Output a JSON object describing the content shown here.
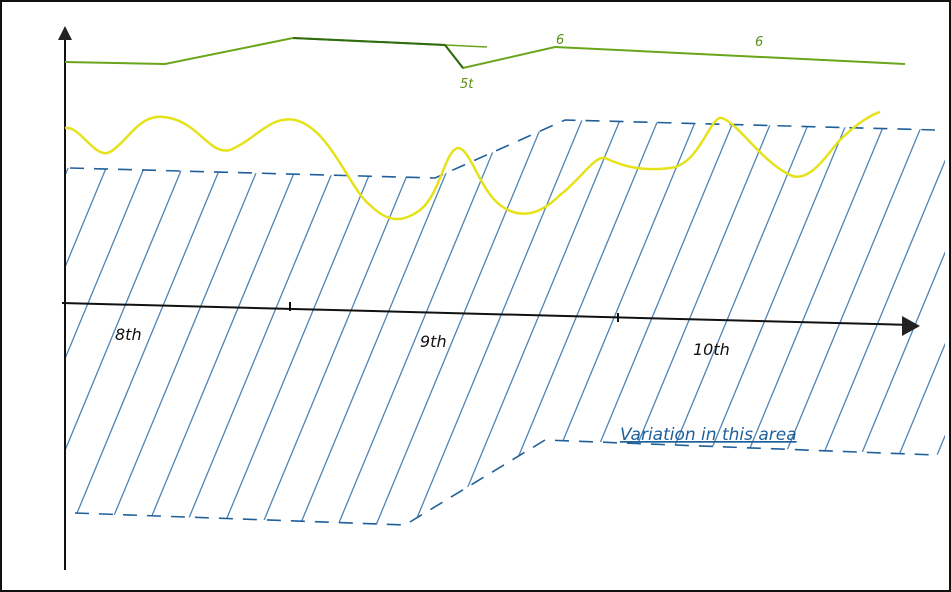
{
  "axis": {
    "x_labels": [
      "8th",
      "9th",
      "10th"
    ]
  },
  "annotations": {
    "green_low": "5t",
    "green_mid": "6",
    "green_right": "6",
    "area_note": "Variation in this area"
  }
}
